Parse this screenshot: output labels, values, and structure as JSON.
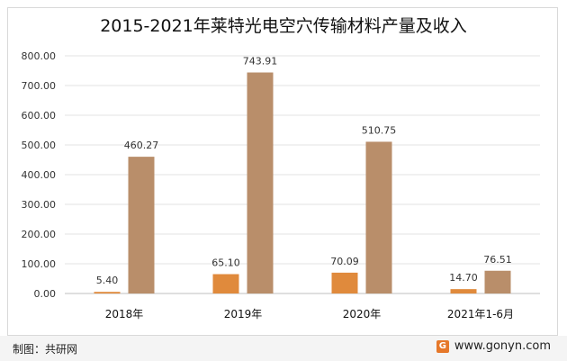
{
  "chart_data": {
    "type": "bar",
    "title": "2015-2021年莱特光电空穴传输材料产量及收入",
    "categories": [
      "2018年",
      "2019年",
      "2020年",
      "2021年1-6月"
    ],
    "series": [
      {
        "values": [
          5.4,
          65.1,
          70.09,
          14.7
        ],
        "labels": [
          "5.40",
          "65.10",
          "70.09",
          "14.70"
        ],
        "color": "#e08a3c"
      },
      {
        "values": [
          460.27,
          743.91,
          510.75,
          76.51
        ],
        "labels": [
          "460.27",
          "743.91",
          "510.75",
          "76.51"
        ],
        "color": "#b98e6a"
      }
    ],
    "ylim": [
      0,
      800
    ],
    "yticks": [
      "0.00",
      "100.00",
      "200.00",
      "300.00",
      "400.00",
      "500.00",
      "600.00",
      "700.00",
      "800.00"
    ],
    "grid": true,
    "legend": "none"
  },
  "footer": {
    "credit": "制图：共研网",
    "brand": "www.gonyn.com",
    "logo_glyph": "G"
  }
}
